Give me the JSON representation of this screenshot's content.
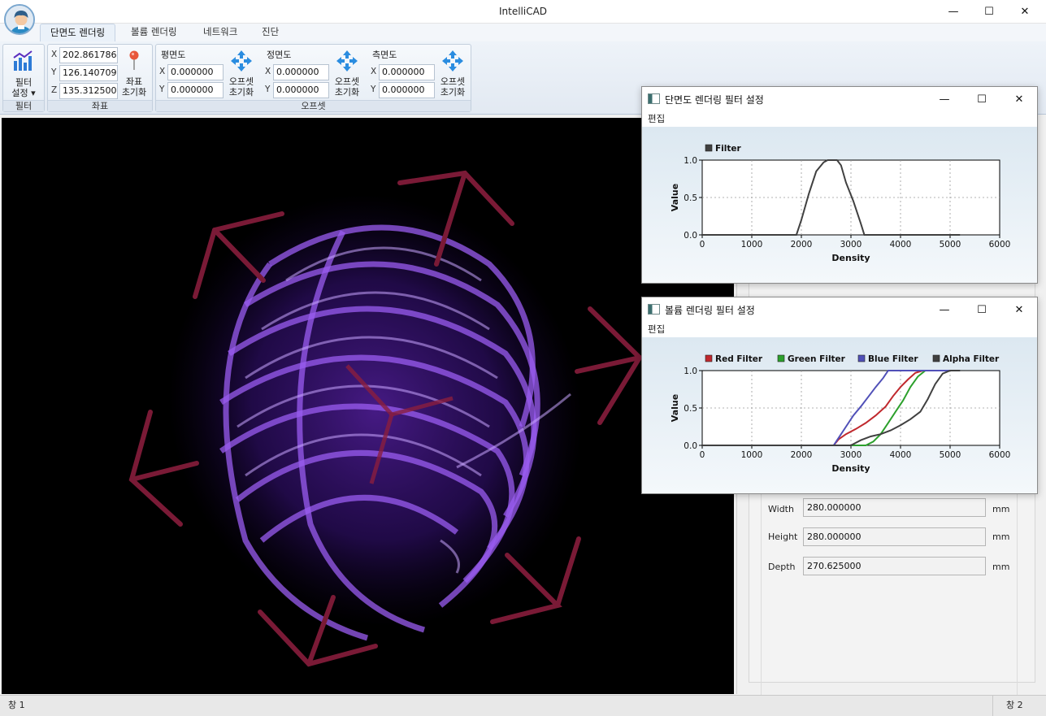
{
  "window": {
    "title": "IntelliCAD",
    "minimize": "—",
    "maximize": "☐",
    "close": "✕"
  },
  "ribbon": {
    "tabs": [
      "단면도 렌더링",
      "볼륨 렌더링",
      "네트워크",
      "진단"
    ],
    "filter_group": {
      "button_line1": "필터",
      "button_line2": "설정 ▾",
      "label": "필터"
    },
    "coord_group": {
      "x_label": "X",
      "x_value": "202.861786",
      "y_label": "Y",
      "y_value": "126.140709",
      "z_label": "Z",
      "z_value": "135.312500",
      "reset_line1": "좌표",
      "reset_line2": "초기화",
      "label": "좌표"
    },
    "offset_group": {
      "label": "오프셋",
      "sections": [
        {
          "title": "평면도",
          "x_label": "X",
          "x_value": "0.000000",
          "y_label": "Y",
          "y_value": "0.000000",
          "reset_line1": "오프셋",
          "reset_line2": "초기화"
        },
        {
          "title": "정면도",
          "x_label": "X",
          "x_value": "0.000000",
          "y_label": "Y",
          "y_value": "0.000000",
          "reset_line1": "오프셋",
          "reset_line2": "초기화"
        },
        {
          "title": "측면도",
          "x_label": "X",
          "x_value": "0.000000",
          "y_label": "Y",
          "y_value": "0.000000",
          "reset_line1": "오프셋",
          "reset_line2": "초기화"
        }
      ]
    }
  },
  "side_panel": {
    "width_label": "Width",
    "width_value": "280.000000",
    "width_unit": "mm",
    "height_label": "Height",
    "height_value": "280.000000",
    "height_unit": "mm",
    "depth_label": "Depth",
    "depth_value": "270.625000",
    "depth_unit": "mm"
  },
  "statusbar": {
    "left": "창 1",
    "right": "창 2"
  },
  "dialog_slice": {
    "title": "단면도 렌더링 필터 설정",
    "menu": "편집",
    "min": "—",
    "max": "☐",
    "close": "✕"
  },
  "dialog_volume": {
    "title": "볼륨 렌더링 필터 설정",
    "menu": "편집",
    "min": "—",
    "max": "☐",
    "close": "✕"
  },
  "chart_data": [
    {
      "type": "line",
      "xlabel": "Density",
      "ylabel": "Value",
      "xlim": [
        0,
        6000
      ],
      "ylim": [
        0,
        1
      ],
      "x_ticks": [
        "0",
        "1000",
        "2000",
        "3000",
        "4000",
        "5000",
        "6000"
      ],
      "y_ticks": [
        "0.0",
        "0.5",
        "1.0"
      ],
      "grid": true,
      "legend_position": "top-left",
      "series": [
        {
          "name": "Filter",
          "color": "#404040",
          "points": [
            [
              0,
              0
            ],
            [
              1900,
              0
            ],
            [
              2000,
              0.2
            ],
            [
              2150,
              0.55
            ],
            [
              2300,
              0.85
            ],
            [
              2450,
              0.97
            ],
            [
              2530,
              1
            ],
            [
              2720,
              1
            ],
            [
              2800,
              0.93
            ],
            [
              2900,
              0.7
            ],
            [
              3050,
              0.45
            ],
            [
              3200,
              0.15
            ],
            [
              3270,
              0
            ],
            [
              5200,
              0
            ]
          ]
        }
      ]
    },
    {
      "type": "line",
      "xlabel": "Density",
      "ylabel": "Value",
      "xlim": [
        0,
        6000
      ],
      "ylim": [
        0,
        1
      ],
      "x_ticks": [
        "0",
        "1000",
        "2000",
        "3000",
        "4000",
        "5000",
        "6000"
      ],
      "y_ticks": [
        "0.0",
        "0.5",
        "1.0"
      ],
      "grid": true,
      "legend_position": "top",
      "series": [
        {
          "name": "Red Filter",
          "color": "#c0282d",
          "points": [
            [
              0,
              0
            ],
            [
              2650,
              0
            ],
            [
              2750,
              0.08
            ],
            [
              2900,
              0.15
            ],
            [
              3100,
              0.22
            ],
            [
              3300,
              0.3
            ],
            [
              3500,
              0.4
            ],
            [
              3700,
              0.52
            ],
            [
              3850,
              0.66
            ],
            [
              4000,
              0.78
            ],
            [
              4150,
              0.88
            ],
            [
              4300,
              0.97
            ],
            [
              4450,
              1
            ],
            [
              5200,
              1
            ]
          ]
        },
        {
          "name": "Green Filter",
          "color": "#2ca02c",
          "points": [
            [
              0,
              0
            ],
            [
              3300,
              0
            ],
            [
              3450,
              0.05
            ],
            [
              3600,
              0.15
            ],
            [
              3750,
              0.3
            ],
            [
              3900,
              0.45
            ],
            [
              4050,
              0.6
            ],
            [
              4200,
              0.78
            ],
            [
              4350,
              0.92
            ],
            [
              4500,
              1
            ],
            [
              5200,
              1
            ]
          ]
        },
        {
          "name": "Blue Filter",
          "color": "#5050b8",
          "points": [
            [
              0,
              0
            ],
            [
              2650,
              0
            ],
            [
              2750,
              0.1
            ],
            [
              2900,
              0.25
            ],
            [
              3050,
              0.4
            ],
            [
              3200,
              0.52
            ],
            [
              3350,
              0.65
            ],
            [
              3500,
              0.78
            ],
            [
              3650,
              0.9
            ],
            [
              3750,
              1
            ],
            [
              5200,
              1
            ]
          ]
        },
        {
          "name": "Alpha Filter",
          "color": "#404040",
          "points": [
            [
              0,
              0
            ],
            [
              3000,
              0
            ],
            [
              3200,
              0.07
            ],
            [
              3400,
              0.12
            ],
            [
              3600,
              0.15
            ],
            [
              3800,
              0.2
            ],
            [
              4000,
              0.27
            ],
            [
              4200,
              0.35
            ],
            [
              4400,
              0.45
            ],
            [
              4550,
              0.62
            ],
            [
              4700,
              0.82
            ],
            [
              4850,
              0.96
            ],
            [
              5000,
              1
            ],
            [
              5200,
              1
            ]
          ]
        }
      ]
    }
  ]
}
